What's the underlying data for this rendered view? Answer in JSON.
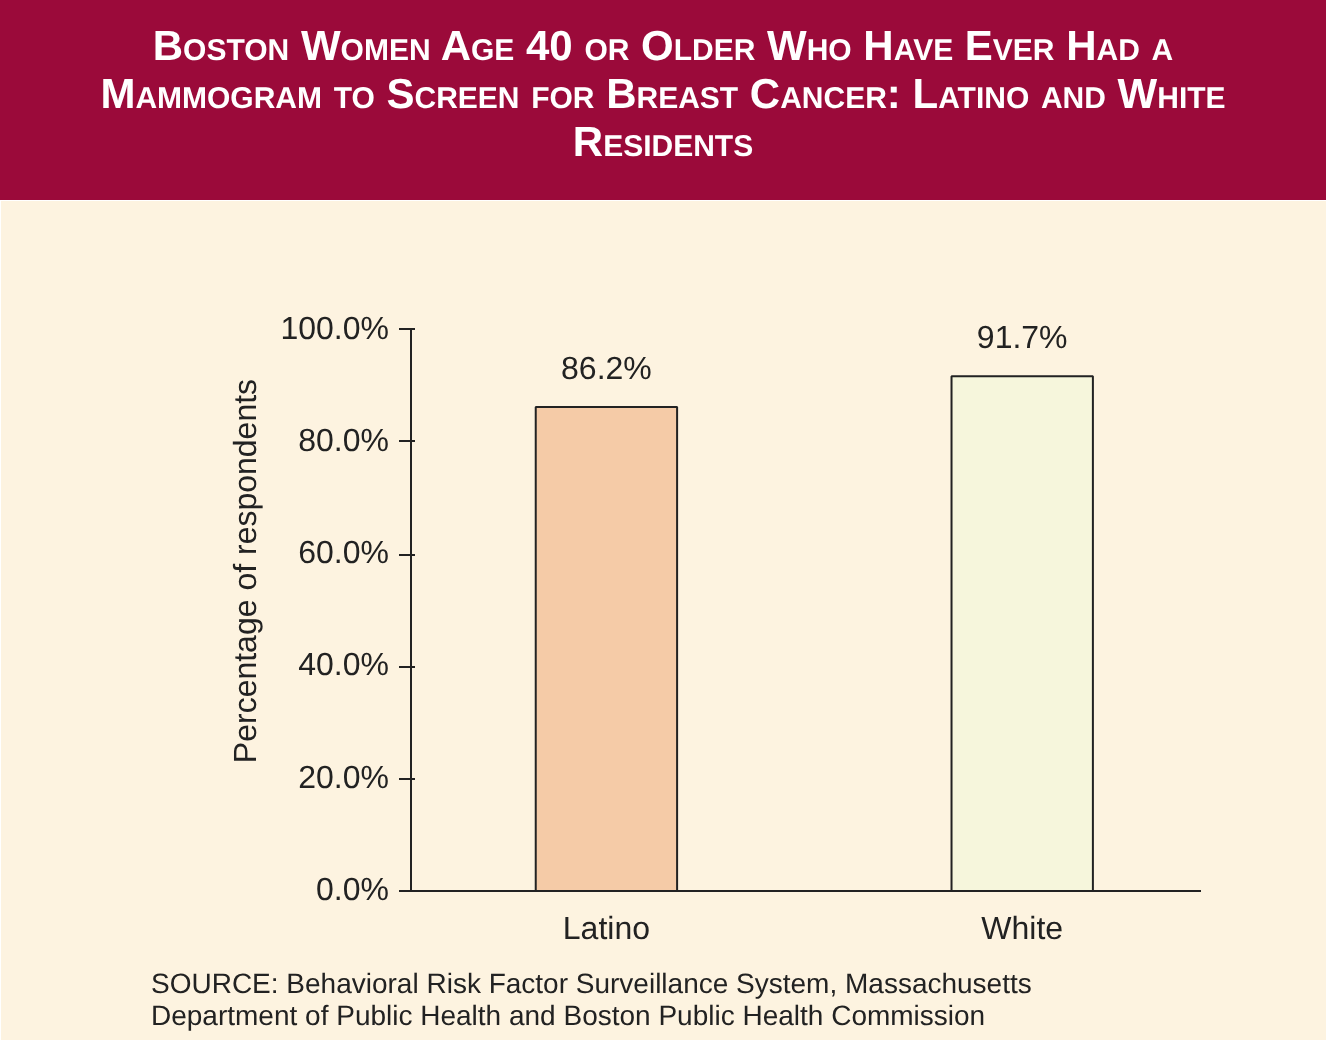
{
  "chart_data": {
    "type": "bar",
    "title": "Boston Women Age 40 or Older Who Have Ever Had a Mammogram to Screen for Breast Cancer: Latino and White Residents",
    "ylabel": "Percentage of respondents",
    "categories": [
      "Latino",
      "White"
    ],
    "values": [
      86.2,
      91.7
    ],
    "value_labels": [
      "86.2%",
      "91.7%"
    ],
    "colors": [
      "#f5cba7",
      "#f6f6dc"
    ],
    "ylim": [
      0,
      100
    ],
    "yticks": [
      {
        "value": 0,
        "label": "0.0%"
      },
      {
        "value": 20,
        "label": "20.0%"
      },
      {
        "value": 40,
        "label": "40.0%"
      },
      {
        "value": 60,
        "label": "60.0%"
      },
      {
        "value": 80,
        "label": "80.0%"
      },
      {
        "value": 100,
        "label": "100.0%"
      }
    ],
    "grid": false,
    "annotations": [
      "SOURCE:  Behavioral Risk Factor Surveillance System, Massachusetts\nDepartment of Public Health and Boston Public Health Commission"
    ]
  }
}
